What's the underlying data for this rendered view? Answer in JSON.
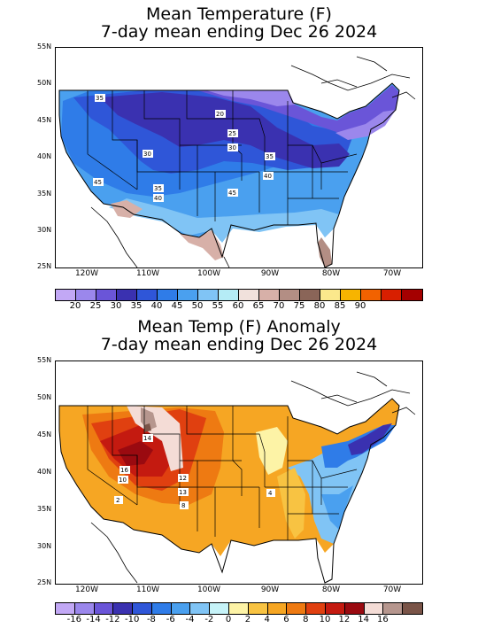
{
  "maps": [
    {
      "title_line1": "Mean Temperature (F)",
      "title_line2": "7-day mean ending Dec 26 2024",
      "lat_labels": [
        "55N",
        "50N",
        "45N",
        "40N",
        "35N",
        "30N",
        "25N"
      ],
      "lon_labels": [
        "120W",
        "110W",
        "100W",
        "90W",
        "80W",
        "70W"
      ],
      "value_labels": [
        "35",
        "20",
        "25",
        "30",
        "30",
        "35",
        "40",
        "45",
        "35",
        "40",
        "45"
      ],
      "colorbar_colors": [
        "#c2a8f5",
        "#9b87ec",
        "#6a55d8",
        "#3a31b0",
        "#2f56d8",
        "#2f7ce8",
        "#4aa0ef",
        "#80c4f5",
        "#b5ecf6",
        "#f1e1dc",
        "#d7b0a8",
        "#b38e84",
        "#8a6558",
        "#fbe88c",
        "#f7b400",
        "#f26200",
        "#d81f00",
        "#a40000"
      ],
      "colorbar_labels": [
        "20",
        "25",
        "30",
        "35",
        "40",
        "45",
        "50",
        "55",
        "60",
        "65",
        "70",
        "75",
        "80",
        "85",
        "90"
      ]
    },
    {
      "title_line1": "Mean Temp (F) Anomaly",
      "title_line2": "7-day mean ending Dec 26 2024",
      "lat_labels": [
        "55N",
        "50N",
        "45N",
        "40N",
        "35N",
        "30N",
        "25N"
      ],
      "lon_labels": [
        "120W",
        "110W",
        "100W",
        "90W",
        "80W",
        "70W"
      ],
      "value_labels": [
        "14",
        "16",
        "10",
        "12",
        "13",
        "8",
        "4",
        "2"
      ],
      "colorbar_colors": [
        "#c2a8f5",
        "#9b87ec",
        "#6a55d8",
        "#3a31b0",
        "#2f56d8",
        "#2f7ce8",
        "#4aa0ef",
        "#80c4f5",
        "#c6f3f8",
        "#fdf3a6",
        "#f8c342",
        "#f6a623",
        "#ee7a12",
        "#e04010",
        "#c41a10",
        "#9a0a10",
        "#f4dcd6",
        "#b6968e",
        "#7a5448"
      ],
      "colorbar_labels": [
        "-16",
        "-14",
        "-12",
        "-10",
        "-8",
        "-6",
        "-4",
        "-2",
        "0",
        "2",
        "4",
        "6",
        "8",
        "10",
        "12",
        "14",
        "16"
      ]
    }
  ]
}
